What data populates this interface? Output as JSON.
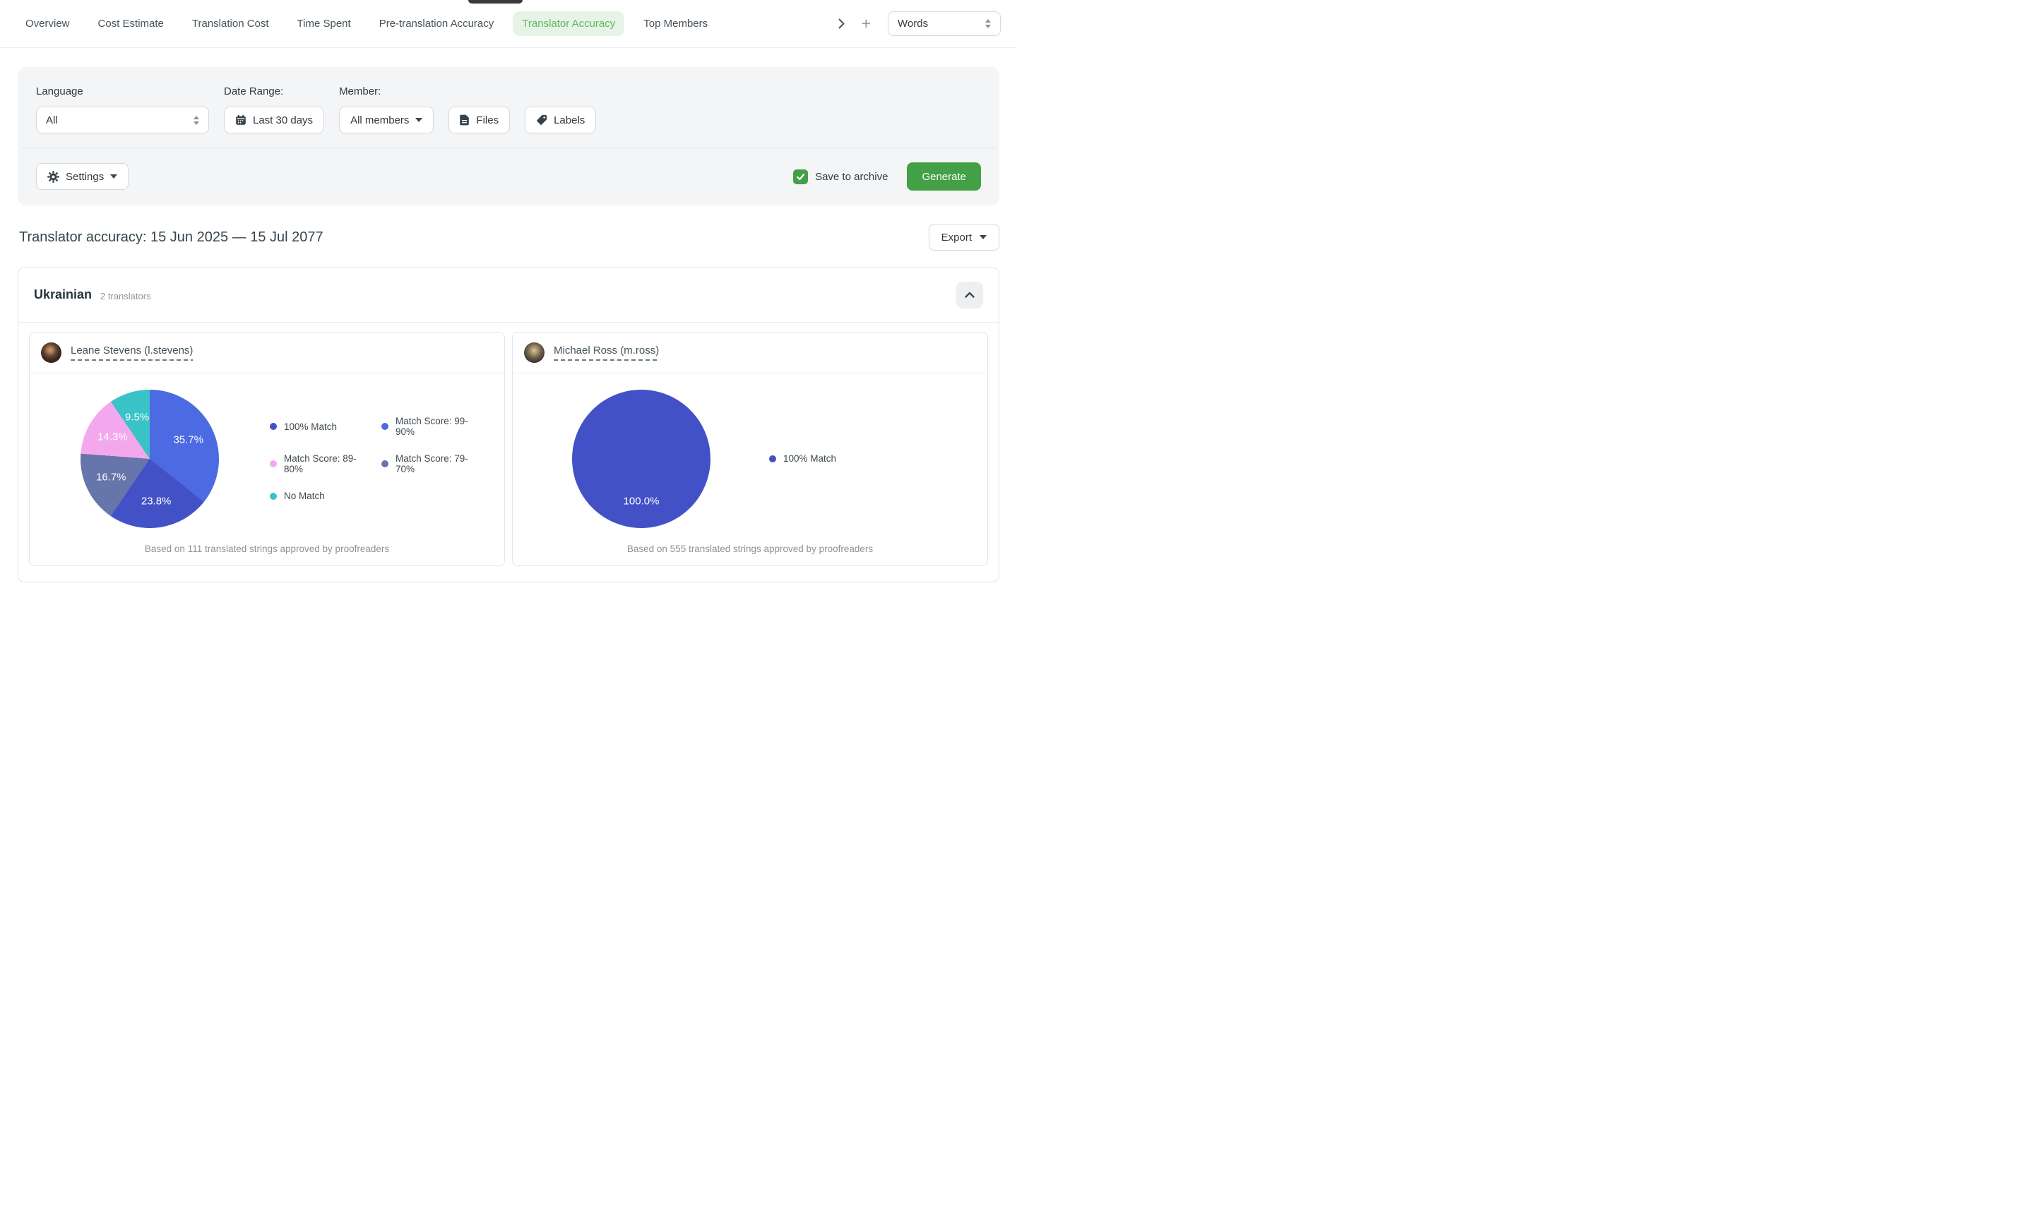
{
  "window": {
    "drag_handle": ""
  },
  "nav": {
    "tabs": [
      {
        "label": "Overview",
        "active": false
      },
      {
        "label": "Cost Estimate",
        "active": false
      },
      {
        "label": "Translation Cost",
        "active": false
      },
      {
        "label": "Time Spent",
        "active": false
      },
      {
        "label": "Pre-translation Accuracy",
        "active": false
      },
      {
        "label": "Translator Accuracy",
        "active": true
      },
      {
        "label": "Top Members",
        "active": false
      }
    ],
    "unit_select": {
      "value": "Words"
    }
  },
  "filters": {
    "language_label": "Language",
    "language_value": "All",
    "date_range_label": "Date Range:",
    "date_range_value": "Last 30 days",
    "member_label": "Member:",
    "member_value": "All members",
    "files_label": "Files",
    "labels_label": "Labels",
    "settings_label": "Settings",
    "save_to_archive_label": "Save to archive",
    "save_to_archive_checked": true,
    "generate_label": "Generate"
  },
  "report": {
    "title": "Translator accuracy: 15 Jun 2025 — 15 Jul 2077",
    "export_label": "Export"
  },
  "section": {
    "language": "Ukrainian",
    "translators": "2 translators"
  },
  "colors": {
    "accent_green": "#43a047",
    "active_tab_green": "#5cb85c",
    "active_tab_bg": "#e7f3e7"
  },
  "chart_data": [
    {
      "type": "pie",
      "translator": "Leane Stevens (l.stevens)",
      "slices": [
        {
          "label": "Match Score: 99-90%",
          "value": 35.7,
          "color": "#4c6be2"
        },
        {
          "label": "100% Match",
          "value": 23.8,
          "color": "#4351c6"
        },
        {
          "label": "Match Score: 79-70%",
          "value": 16.7,
          "color": "#6675aa"
        },
        {
          "label": "Match Score: 89-80%",
          "value": 14.3,
          "color": "#f3a8ee"
        },
        {
          "label": "No Match",
          "value": 9.5,
          "color": "#39c3c6"
        }
      ],
      "legend": [
        {
          "label": "100% Match",
          "color": "#4351c6"
        },
        {
          "label": "Match Score: 99-90%",
          "color": "#4c6be2"
        },
        {
          "label": "Match Score: 89-80%",
          "color": "#f3a8ee"
        },
        {
          "label": "Match Score: 79-70%",
          "color": "#6675aa"
        },
        {
          "label": "No Match",
          "color": "#39c3c6"
        }
      ],
      "footnote": "Based on 111 translated strings approved by proofreaders"
    },
    {
      "type": "pie",
      "translator": "Michael Ross (m.ross)",
      "slices": [
        {
          "label": "100% Match",
          "value": 100.0,
          "color": "#4351c6"
        }
      ],
      "legend": [
        {
          "label": "100% Match",
          "color": "#4351c6"
        }
      ],
      "footnote": "Based on 555 translated strings approved by proofreaders"
    }
  ]
}
